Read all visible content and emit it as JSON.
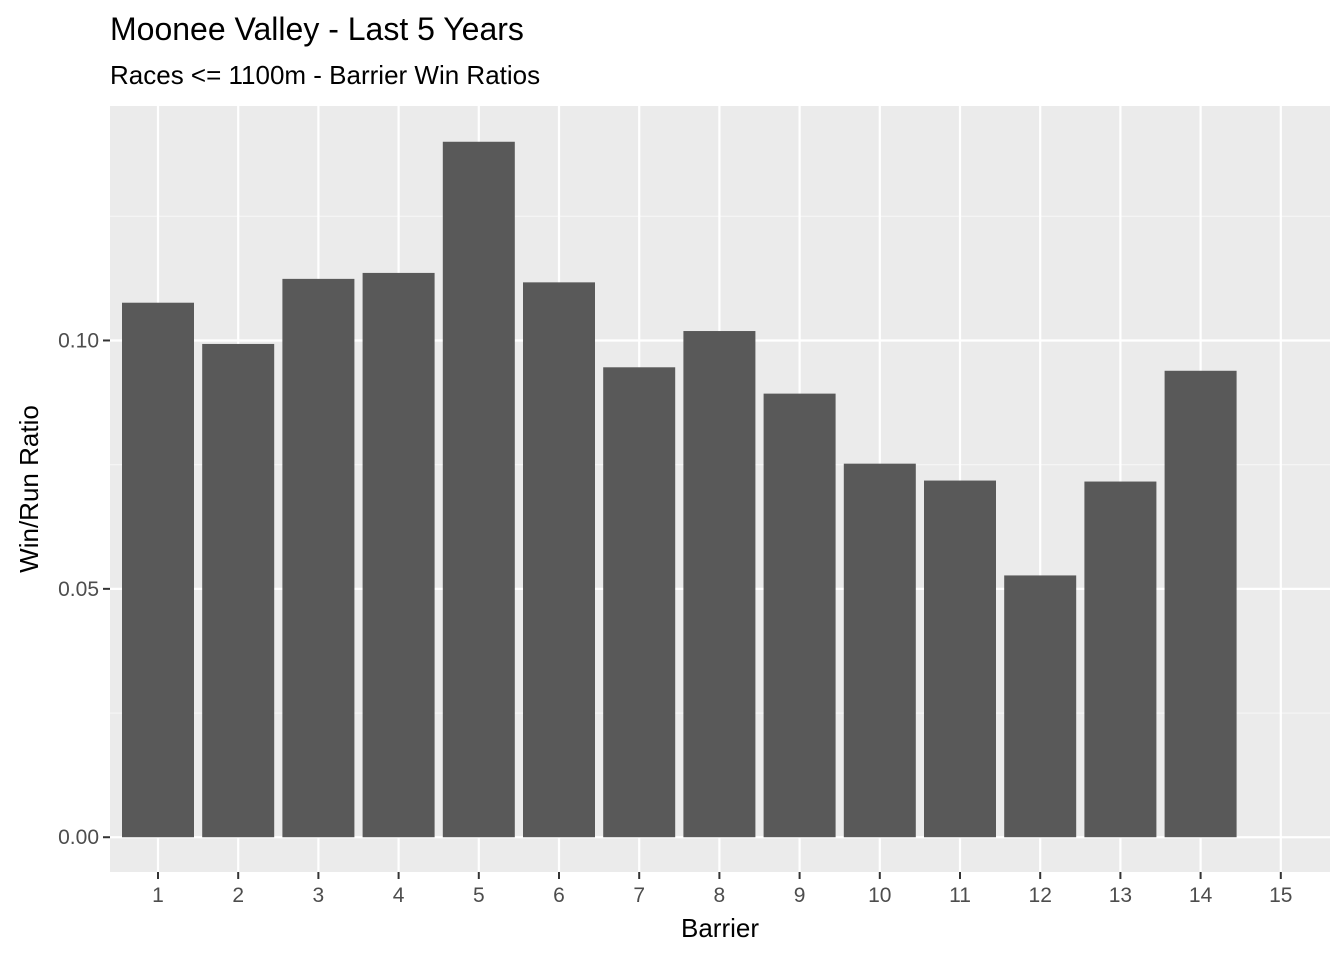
{
  "chart_data": {
    "type": "bar",
    "title": "Moonee Valley - Last 5 Years",
    "subtitle": "Races <= 1100m - Barrier Win Ratios",
    "xlabel": "Barrier",
    "ylabel": "Win/Run Ratio",
    "categories": [
      "1",
      "2",
      "3",
      "4",
      "5",
      "6",
      "7",
      "8",
      "9",
      "10",
      "11",
      "12",
      "13",
      "14",
      "15"
    ],
    "values": [
      0.1076,
      0.0993,
      0.1124,
      0.1136,
      0.14,
      0.1117,
      0.0946,
      0.1019,
      0.0893,
      0.0752,
      0.0718,
      0.0527,
      0.0716,
      0.0939,
      null
    ],
    "y_ticks": [
      "0.00",
      "0.05",
      "0.10"
    ],
    "y_tick_values": [
      0.0,
      0.05,
      0.1
    ],
    "ylim": [
      -0.007,
      0.1472
    ],
    "grid": true,
    "legend": "none",
    "colors": {
      "bar": "#595959",
      "panel": "#ebebeb",
      "grid_major": "#ffffff",
      "grid_minor": "#f5f5f5",
      "tick_text": "#4d4d4d",
      "text": "#000000"
    }
  }
}
